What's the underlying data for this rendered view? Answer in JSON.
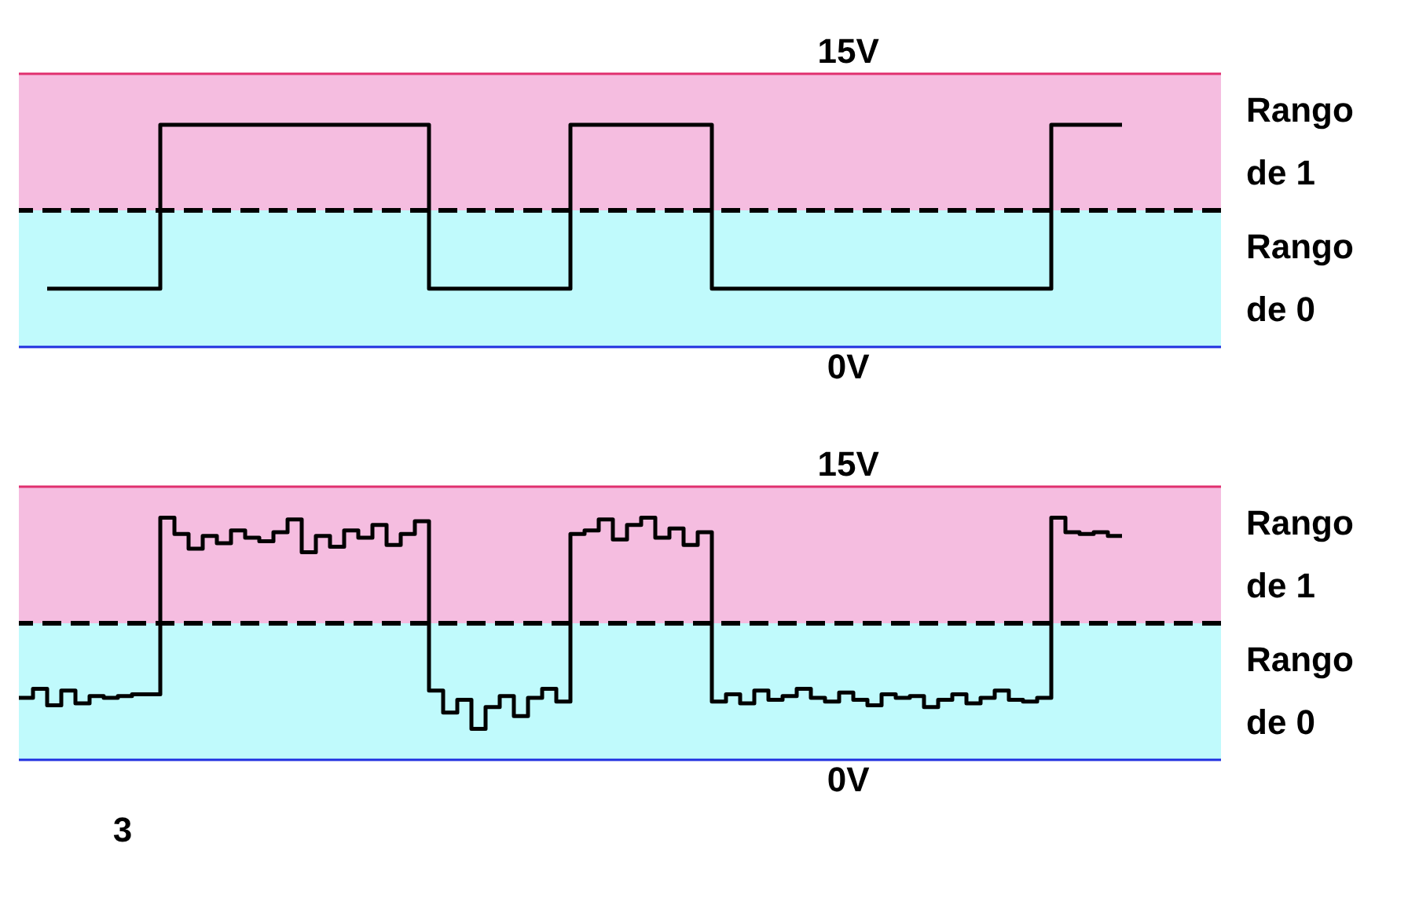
{
  "chart_data": [
    {
      "type": "step",
      "categories": [
        null,
        null,
        null,
        null,
        null,
        null,
        null,
        null,
        null,
        null,
        null,
        null,
        null,
        null,
        null,
        null,
        null,
        null,
        null,
        null,
        null,
        null,
        null,
        null,
        null,
        null,
        null,
        null,
        null,
        null,
        null,
        null,
        null,
        null,
        null,
        null,
        null,
        null,
        null,
        null,
        null,
        null,
        null,
        null,
        null,
        null,
        null,
        null,
        null,
        null,
        null,
        null,
        null,
        null,
        null,
        null,
        null,
        null,
        null,
        null,
        null,
        null,
        null,
        null,
        null,
        null,
        null,
        null,
        null,
        null,
        null,
        null,
        null,
        null,
        null,
        null,
        null,
        null,
        null,
        null,
        null,
        null,
        null,
        null,
        null,
        null
      ],
      "series": [
        {
          "color": "#000000",
          "values": [
            null,
            null,
            3.2,
            3.2,
            3.2,
            3.2,
            3.2,
            3.2,
            3.2,
            3.2,
            12.2,
            12.2,
            12.2,
            12.2,
            12.2,
            12.2,
            12.2,
            12.2,
            12.2,
            12.2,
            12.2,
            12.2,
            12.2,
            12.2,
            12.2,
            12.2,
            12.2,
            12.2,
            12.2,
            3.2,
            3.2,
            3.2,
            3.2,
            3.2,
            3.2,
            3.2,
            3.2,
            3.2,
            3.2,
            12.2,
            12.2,
            12.2,
            12.2,
            12.2,
            12.2,
            12.2,
            12.2,
            12.2,
            12.2,
            3.2,
            3.2,
            3.2,
            3.2,
            3.2,
            3.2,
            3.2,
            3.2,
            3.2,
            3.2,
            3.2,
            3.2,
            3.2,
            3.2,
            3.2,
            3.2,
            3.2,
            3.2,
            3.2,
            3.2,
            3.2,
            3.2,
            3.2,
            3.2,
            12.2,
            12.2,
            12.2,
            12.2,
            12.2,
            12.2,
            null,
            null,
            null,
            null,
            null,
            null,
            null
          ]
        }
      ],
      "ylim": [
        0,
        15
      ],
      "tick_labels": false,
      "line_style": "solid",
      "bands": [
        {
          "axis": "y",
          "from": 7.5,
          "to": 15,
          "label": "Rango de 1",
          "color": "#f5bde0"
        },
        {
          "axis": "y",
          "from": 0,
          "to": 7.5,
          "label": "Rango de 0",
          "color": "#c0fafc"
        }
      ],
      "ref_lines": [
        {
          "axis": "y",
          "value": 15,
          "label": "15V",
          "color": "#e0306f",
          "line_style": "solid"
        },
        {
          "axis": "y",
          "value": 7.5,
          "label": null,
          "color": "#000000",
          "line_style": "dashed"
        },
        {
          "axis": "y",
          "value": 0,
          "label": "0V",
          "color": "#2030e0",
          "line_style": "solid"
        }
      ]
    },
    {
      "type": "step",
      "categories": [
        null,
        null,
        null,
        null,
        null,
        null,
        null,
        null,
        null,
        null,
        null,
        null,
        null,
        null,
        null,
        null,
        null,
        null,
        null,
        null,
        null,
        null,
        null,
        null,
        null,
        null,
        null,
        null,
        null,
        null,
        null,
        null,
        null,
        null,
        null,
        null,
        null,
        null,
        null,
        null,
        null,
        null,
        null,
        null,
        null,
        null,
        null,
        null,
        null,
        null,
        null,
        null,
        null,
        null,
        null,
        null,
        null,
        null,
        null,
        null,
        null,
        null,
        null,
        null,
        null,
        null,
        null,
        null,
        null,
        null,
        null,
        null,
        null,
        null,
        null,
        null,
        null,
        null,
        null,
        null,
        null,
        null,
        null,
        null,
        null,
        null
      ],
      "series": [
        {
          "color": "#000000",
          "values": [
            3.4,
            3.9,
            3.0,
            3.8,
            3.1,
            3.5,
            3.4,
            3.5,
            3.6,
            3.6,
            13.3,
            12.4,
            11.6,
            12.3,
            11.9,
            12.6,
            12.2,
            12.0,
            12.5,
            13.2,
            11.4,
            12.3,
            11.7,
            12.6,
            12.2,
            12.9,
            11.8,
            12.4,
            13.1,
            3.8,
            2.6,
            3.3,
            1.7,
            2.9,
            3.5,
            2.4,
            3.4,
            3.9,
            3.2,
            12.4,
            12.6,
            13.2,
            12.1,
            12.9,
            13.3,
            12.2,
            12.7,
            11.8,
            12.5,
            3.2,
            3.6,
            3.1,
            3.8,
            3.3,
            3.5,
            3.9,
            3.4,
            3.2,
            3.7,
            3.3,
            3.0,
            3.6,
            3.4,
            3.5,
            2.9,
            3.3,
            3.6,
            3.1,
            3.4,
            3.8,
            3.3,
            3.2,
            3.4,
            13.3,
            12.5,
            12.4,
            12.5,
            12.3,
            12.3,
            null,
            null,
            null,
            null,
            null,
            null,
            null
          ]
        }
      ],
      "ylim": [
        0,
        15
      ],
      "tick_labels": false,
      "line_style": "solid",
      "bands": [
        {
          "axis": "y",
          "from": 7.5,
          "to": 15,
          "label": "Rango de 1",
          "color": "#f5bde0"
        },
        {
          "axis": "y",
          "from": 0,
          "to": 7.5,
          "label": "Rango de 0",
          "color": "#c0fafc"
        }
      ],
      "ref_lines": [
        {
          "axis": "y",
          "value": 15,
          "label": "15V",
          "color": "#e0306f",
          "line_style": "solid"
        },
        {
          "axis": "y",
          "value": 7.5,
          "label": null,
          "color": "#000000",
          "line_style": "dashed"
        },
        {
          "axis": "y",
          "value": 0,
          "label": "0V",
          "color": "#2030e0",
          "line_style": "solid"
        }
      ],
      "annotations": [
        "3"
      ]
    }
  ]
}
